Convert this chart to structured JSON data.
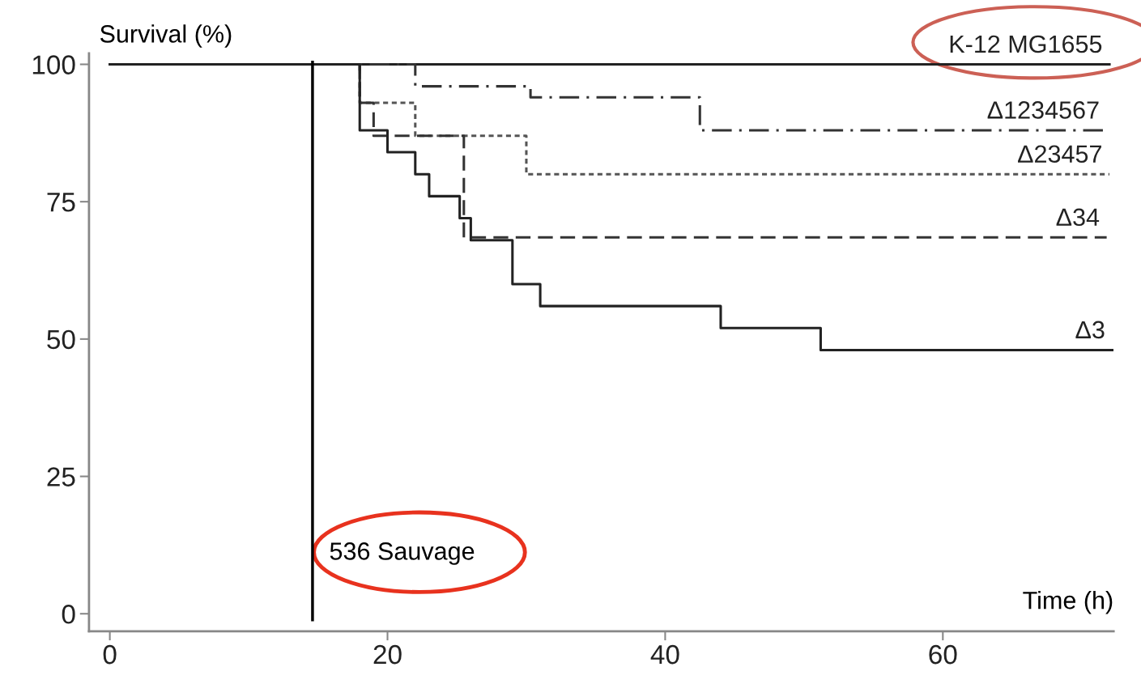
{
  "chart_data": {
    "type": "step",
    "ylabel": "Survival (%)",
    "xlabel": "Time (h)",
    "xlim": [
      -1.5,
      72.3
    ],
    "ylim": [
      -3.2,
      102
    ],
    "xticks": [
      0,
      20,
      40,
      60
    ],
    "yticks": [
      0,
      25,
      50,
      75,
      100
    ],
    "grid": false,
    "legend": false,
    "series": [
      {
        "name": "K-12 MG1655",
        "color": "#222222",
        "line_style": "solid",
        "x": [
          0,
          72
        ],
        "values": [
          100,
          100
        ]
      },
      {
        "name": "Δ1234567",
        "color": "#333333",
        "line_style": "dashdot",
        "x": [
          0,
          22,
          30.3,
          42.5,
          71.8
        ],
        "values": [
          100,
          96,
          94,
          88,
          88
        ]
      },
      {
        "name": "Δ23457",
        "color": "#555555",
        "line_style": "dotted",
        "x": [
          0,
          18,
          22,
          30,
          72
        ],
        "values": [
          100,
          93,
          87,
          80,
          80
        ]
      },
      {
        "name": "Δ34",
        "color": "#333333",
        "line_style": "dashed",
        "x": [
          0,
          18,
          19,
          25.5,
          71.8
        ],
        "values": [
          100,
          93,
          87,
          68.5,
          68.5
        ]
      },
      {
        "name": "Δ3",
        "color": "#222222",
        "line_style": "solid",
        "x": [
          0,
          18,
          20,
          22,
          23,
          25.2,
          26,
          29,
          31,
          44,
          51.2,
          72.2
        ],
        "values": [
          100,
          88,
          84,
          80,
          76,
          72,
          68,
          60,
          56,
          52,
          48,
          48
        ]
      }
    ],
    "ref_lines": [
      {
        "axis": "x",
        "value": 14.6,
        "label": "536 Sauvage",
        "color": "#000000"
      }
    ]
  }
}
